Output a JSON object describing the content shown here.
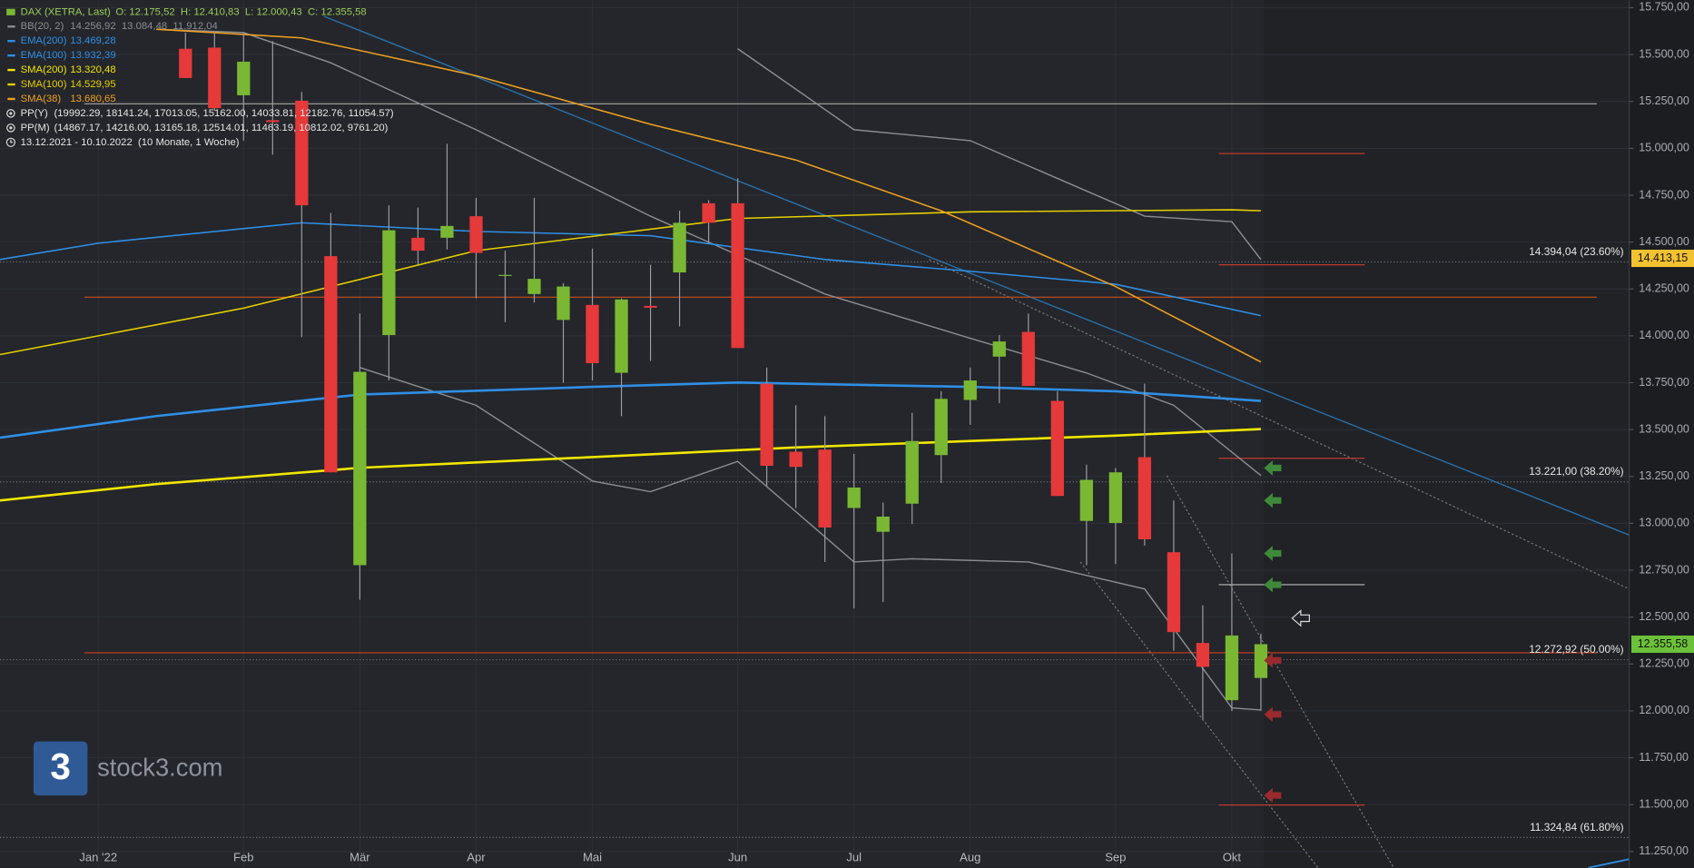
{
  "chart_data": {
    "type": "candlestick",
    "instrument": "DAX (XETRA, Last)",
    "ohlc_label": "O: 12.175,52  H: 12.410,83  L: 12.000,43  C: 12.355,58",
    "range_label": "13.12.2021 - 10.10.2022  (10 Monate, 1 Woche)",
    "watermark": "stock3.com",
    "logo_text": "3",
    "xlim": [
      -3.38,
      52.67
    ],
    "ylim": [
      11163,
      15790
    ],
    "xticks": [
      {
        "value": 0,
        "label": "Jan '22"
      },
      {
        "value": 5,
        "label": "Feb"
      },
      {
        "value": 9,
        "label": "Mär"
      },
      {
        "value": 13,
        "label": "Apr"
      },
      {
        "value": 17,
        "label": "Mai"
      },
      {
        "value": 22,
        "label": "Jun"
      },
      {
        "value": 26,
        "label": "Jul"
      },
      {
        "value": 30,
        "label": "Aug"
      },
      {
        "value": 35,
        "label": "Sep"
      },
      {
        "value": 39,
        "label": "Okt"
      }
    ],
    "yticks": [
      {
        "value": 15750,
        "label": "15.750,00"
      },
      {
        "value": 15500,
        "label": "15.500,00"
      },
      {
        "value": 15250,
        "label": "15.250,00"
      },
      {
        "value": 15000,
        "label": "15.000,00"
      },
      {
        "value": 14750,
        "label": "14.750,00"
      },
      {
        "value": 14500,
        "label": "14.500,00"
      },
      {
        "value": 14250,
        "label": "14.250,00"
      },
      {
        "value": 14000,
        "label": "14.000,00"
      },
      {
        "value": 13750,
        "label": "13.750,00"
      },
      {
        "value": 13500,
        "label": "13.500,00"
      },
      {
        "value": 13250,
        "label": "13.250,00"
      },
      {
        "value": 13000,
        "label": "13.000,00"
      },
      {
        "value": 12750,
        "label": "12.750,00"
      },
      {
        "value": 12500,
        "label": "12.500,00"
      },
      {
        "value": 12250,
        "label": "12.250,00"
      },
      {
        "value": 12000,
        "label": "12.000,00"
      },
      {
        "value": 11750,
        "label": "11.750,00"
      },
      {
        "value": 11500,
        "label": "11.500,00"
      },
      {
        "value": 11250,
        "label": "11.250,00"
      }
    ],
    "grid": true,
    "up_color": "#7ab833",
    "down_color": "#e5393a",
    "candles": {
      "x": [
        3,
        4,
        5,
        6,
        7,
        8,
        9,
        10,
        11,
        12,
        13,
        14,
        15,
        16,
        17,
        18,
        19,
        20,
        21,
        22,
        23,
        24,
        25,
        26,
        27,
        28,
        29,
        30,
        31,
        32,
        33,
        34,
        35,
        36,
        37,
        38,
        39,
        40
      ],
      "open": [
        15531,
        15537,
        15283,
        15150,
        15254,
        14425,
        12777,
        14004,
        14523,
        14523,
        14638,
        14320,
        14223,
        14085,
        14165,
        13803,
        14160,
        14338,
        14707,
        14707,
        13745,
        13382,
        13393,
        13082,
        12955,
        13105,
        13364,
        13658,
        13889,
        14021,
        13653,
        13013,
        13002,
        13353,
        12846,
        12362,
        12057,
        12175.52
      ],
      "high": [
        15617,
        15617,
        15617,
        15571,
        15300,
        14655,
        14119,
        14696,
        14684,
        15024,
        14736,
        14454,
        14736,
        14281,
        14465,
        14200,
        14379,
        14667,
        14724,
        14840,
        13831,
        13630,
        13572,
        13370,
        13111,
        13589,
        13704,
        13831,
        14004,
        14119,
        13704,
        13313,
        13295,
        13745,
        13122,
        12563,
        12840,
        12410.83
      ],
      "low": [
        15375,
        15200,
        15041,
        14966,
        13993,
        13272,
        12592,
        13762,
        14379,
        14460,
        14200,
        14073,
        14177,
        13750,
        13762,
        13572,
        13866,
        14050,
        14494,
        13935,
        13197,
        13082,
        12794,
        12546,
        12581,
        12996,
        13215,
        13526,
        13641,
        13733,
        13146,
        12777,
        12783,
        12881,
        12322,
        11953,
        11999,
        12000.43
      ],
      "close": [
        15375,
        15214,
        15462,
        15140,
        14696,
        13272,
        13808,
        14563,
        14454,
        14586,
        14442,
        14325,
        14304,
        14263,
        13854,
        14194,
        14150,
        14603,
        14603,
        13935,
        13307,
        13301,
        12978,
        13191,
        13036,
        13439,
        13664,
        13762,
        13970,
        13733,
        13146,
        13232,
        13272,
        12915,
        12420,
        12235,
        12402,
        12355.58
      ]
    },
    "overlays": [
      {
        "name": "BB(20, 2)",
        "label": "14.256,92  13.084,48  11.912,04",
        "color": "#8a8d92",
        "width": 1.2,
        "lines": [
          {
            "x": [
              22,
              26,
              30,
              36,
              39,
              40
            ],
            "values": [
              15531,
              15099,
              15041,
              14638,
              14609,
              14407
            ]
          },
          {
            "x": [
              2,
              5,
              8,
              13,
              19,
              25,
              30,
              34,
              37,
              40
            ],
            "values": [
              15635,
              15617,
              15456,
              15099,
              14638,
              14223,
              13987,
              13802,
              13630,
              13255
            ]
          },
          {
            "x": [
              9,
              13,
              17,
              19,
              22,
              26,
              28,
              32,
              36,
              39,
              40
            ],
            "values": [
              13831,
              13630,
              13226,
              13169,
              13330,
              12794,
              12811,
              12794,
              12650,
              12016,
              12005
            ]
          }
        ]
      },
      {
        "name": "EMA(200)",
        "label": "13.469,28",
        "color": "#2f8fe6",
        "width": 2.2,
        "lines": [
          {
            "x": [
              -3.38,
              2,
              9,
              17,
              22,
              30,
              35,
              40
            ],
            "values": [
              13457,
              13572,
              13687,
              13728,
              13751,
              13728,
              13704,
              13653
            ]
          }
        ]
      },
      {
        "name": "EMA(100)",
        "label": "13.932,39",
        "color": "#2f8fe6",
        "width": 1.3,
        "lines": [
          {
            "x": [
              -3.38,
              0,
              7,
              13,
              19,
              25,
              30,
              35,
              40
            ],
            "values": [
              14407,
              14494,
              14603,
              14557,
              14534,
              14407,
              14344,
              14275,
              14108
            ]
          }
        ]
      },
      {
        "name": "SMA(200)",
        "label": "13.320,48",
        "color": "#f2e600",
        "width": 2.2,
        "lines": [
          {
            "x": [
              -3.38,
              2,
              9,
              17,
              24,
              30,
              35,
              40
            ],
            "values": [
              13122,
              13209,
              13296,
              13353,
              13405,
              13439,
              13468,
              13503
            ]
          }
        ]
      },
      {
        "name": "SMA(100)",
        "label": "14.529,95",
        "color": "#e6cf00",
        "width": 1.3,
        "lines": [
          {
            "x": [
              -3.38,
              5,
              13,
              22,
              30,
              39,
              40
            ],
            "values": [
              13900,
              14148,
              14454,
              14626,
              14661,
              14672,
              14667
            ]
          }
        ]
      },
      {
        "name": "SMA(38)",
        "label": "13.680,65",
        "color": "#f0a020",
        "width": 1.3,
        "lines": [
          {
            "x": [
              2,
              7,
              13,
              19,
              24,
              29,
              35,
              40
            ],
            "values": [
              15635,
              15589,
              15387,
              15128,
              14938,
              14667,
              14263,
              13860
            ]
          }
        ]
      }
    ],
    "pivots": [
      {
        "name": "PP(Y)",
        "label": "(19992.29, 18141.24, 17013.05, 15162.00, 14033.81, 12182.76, 11054.57)"
      },
      {
        "name": "PP(M)",
        "label": "(14867.17, 14216.00, 13165.18, 12514.01, 11463.19, 10812.02, 9761.20)"
      }
    ],
    "levels": [
      {
        "value": 15237,
        "x": [
          -0.48,
          51.56
        ],
        "color": "#9a9a9a"
      },
      {
        "value": 14206,
        "x": [
          -0.48,
          51.56
        ],
        "color": "#c8501e"
      },
      {
        "value": 12310,
        "x": [
          -0.48,
          51.56
        ],
        "color": "#d0401e"
      },
      {
        "value": 14972,
        "x": [
          38.55,
          43.57
        ],
        "color": "#c0392b"
      },
      {
        "value": 14379,
        "x": [
          38.55,
          43.57
        ],
        "color": "#c0392b"
      },
      {
        "value": 13347,
        "x": [
          38.55,
          43.57
        ],
        "color": "#c0392b"
      },
      {
        "value": 12673,
        "x": [
          38.55,
          43.57
        ],
        "color": "#bbbbbb"
      },
      {
        "value": 11498,
        "x": [
          38.55,
          43.57
        ],
        "color": "#c0392b"
      }
    ],
    "fibs": [
      {
        "value": 14394.04,
        "label": "14.394,04 (23.60%)"
      },
      {
        "value": 13221.0,
        "label": "13.221,00 (38.20%)"
      },
      {
        "value": 12272.92,
        "label": "12.272,92 (50.00%)"
      },
      {
        "value": 11324.84,
        "label": "11.324,84 (61.80%)"
      }
    ],
    "price_tags": [
      {
        "value": 14413.15,
        "label": "14.413,15",
        "color": "#f2c230"
      },
      {
        "value": 12355.58,
        "label": "12.355,58",
        "color": "#6cc13a"
      }
    ]
  }
}
